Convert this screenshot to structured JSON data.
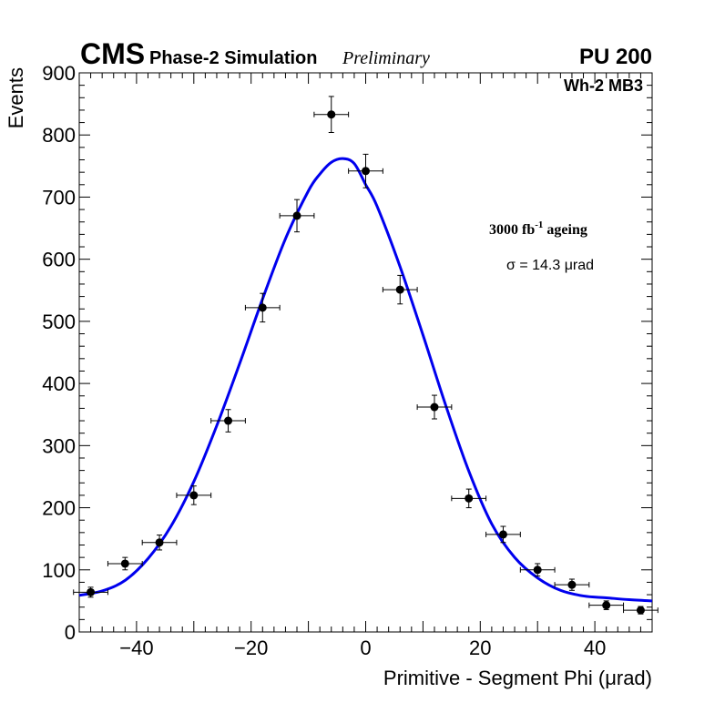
{
  "header": {
    "experiment": "CMS",
    "subtitle": "Phase-2 Simulation",
    "status": "Preliminary",
    "pileup": "PU 200"
  },
  "chart_data": {
    "type": "scatter",
    "title": "",
    "xlabel": "Primitive - Segment Phi (μrad)",
    "ylabel": "Events",
    "xlim": [
      -50,
      50
    ],
    "ylim": [
      0,
      900
    ],
    "x_ticks": [
      -40,
      -20,
      0,
      20,
      40
    ],
    "x_tick_labels": [
      "−40",
      "−20",
      "0",
      "20",
      "40"
    ],
    "y_ticks": [
      0,
      100,
      200,
      300,
      400,
      500,
      600,
      700,
      800,
      900
    ],
    "y_tick_labels": [
      "0",
      "100",
      "200",
      "300",
      "400",
      "500",
      "600",
      "700",
      "800",
      "900"
    ],
    "region_label": "Wh-2 MB3",
    "ageing_label": "3000 fb",
    "ageing_exponent": "-1",
    "ageing_suffix": "ageing",
    "sigma_label": "σ = 14.3 μrad",
    "bin_half_width": 3,
    "series": [
      {
        "name": "Simulation",
        "style": "points-with-errors",
        "color": "#000000",
        "x": [
          -48,
          -42,
          -36,
          -30,
          -24,
          -18,
          -12,
          -6,
          0,
          6,
          12,
          18,
          24,
          30,
          36,
          42,
          48
        ],
        "values": [
          64,
          110,
          144,
          220,
          340,
          522,
          670,
          833,
          742,
          551,
          362,
          215,
          157,
          100,
          76,
          43,
          35
        ],
        "y_err": [
          8,
          10,
          12,
          15,
          18,
          23,
          26,
          29,
          27,
          23,
          19,
          15,
          13,
          10,
          9,
          7,
          6
        ]
      },
      {
        "name": "Gaussian fit",
        "style": "line",
        "color": "#0000ee",
        "x": [
          -50,
          -46,
          -42,
          -38,
          -34,
          -30,
          -26,
          -22,
          -18,
          -14,
          -10,
          -8,
          -6,
          -4,
          -2,
          0,
          2,
          6,
          10,
          14,
          18,
          22,
          26,
          30,
          34,
          38,
          42,
          46,
          50
        ],
        "values": [
          59,
          66,
          83,
          118,
          170,
          242,
          332,
          432,
          536,
          633,
          710,
          737,
          756,
          762,
          754,
          720,
          685,
          588,
          478,
          364,
          259,
          174,
          120,
          87,
          67,
          58,
          55,
          52,
          50
        ]
      }
    ]
  }
}
